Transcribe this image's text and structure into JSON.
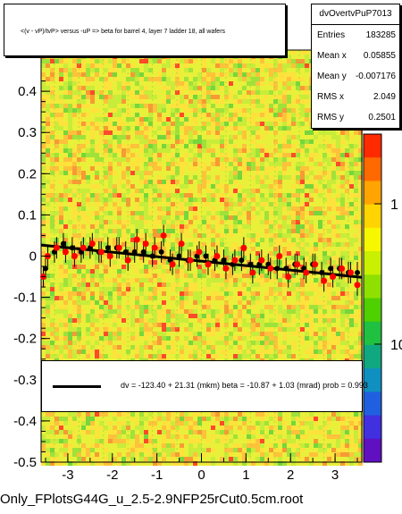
{
  "title": "<(v - vP)/tvP> versus -uP => beta for barrel 4, layer 7 ladder 18, all wafers",
  "footer": "Only_FPlotsG44G_u_2.5-2.9NFP25rCut0.5cm.root",
  "stats": {
    "name": "dvOvertvPuP7013",
    "rows": [
      {
        "label": "Entries",
        "value": "183285"
      },
      {
        "label": "Mean x",
        "value": "0.05855"
      },
      {
        "label": "Mean y",
        "value": "-0.007176"
      },
      {
        "label": "RMS x",
        "value": "2.049"
      },
      {
        "label": "RMS y",
        "value": "0.2501"
      }
    ]
  },
  "fit": {
    "text": "dv = -123.40 + 21.31 (mkm) beta = -10.87 + 1.03 (mrad) prob = 0.993"
  },
  "chart_data": {
    "type": "scatter",
    "title": "<(v - vP)/tvP> versus -uP => beta for barrel 4, layer 7 ladder 18, all wafers",
    "xlabel": "",
    "ylabel": "",
    "xlim": [
      -3.6,
      3.6
    ],
    "ylim": [
      -0.5,
      0.5
    ],
    "x_ticks": [
      -3,
      -2,
      -1,
      0,
      1,
      2,
      3
    ],
    "x_tick_labels": [
      "-3",
      "-2",
      "-1",
      "0",
      "1",
      "2",
      "3"
    ],
    "y_ticks": [
      -0.5,
      -0.4,
      -0.3,
      -0.2,
      -0.1,
      0,
      0.1,
      0.2,
      0.3,
      0.4
    ],
    "y_tick_labels": [
      "-0.5",
      "-0.4",
      "-0.3",
      "-0.2",
      "-0.1",
      "0",
      "0.1",
      "0.2",
      "0.3",
      "0.4"
    ],
    "colorbar": {
      "scale": "log",
      "tick_labels": [
        "1",
        "10"
      ]
    },
    "fit_line": {
      "slope": -0.01087,
      "intercept": -0.01234,
      "color": "#000000"
    },
    "series": [
      {
        "color": "#000000",
        "x": [
          -3.5,
          -3.3,
          -3.1,
          -2.9,
          -2.7,
          -2.5,
          -2.3,
          -2.1,
          -1.9,
          -1.7,
          -1.5,
          -1.3,
          -1.1,
          -0.9,
          -0.7,
          -0.5,
          -0.3,
          -0.1,
          0.1,
          0.3,
          0.5,
          0.7,
          0.9,
          1.1,
          1.3,
          1.5,
          1.7,
          1.9,
          2.1,
          2.3,
          2.5,
          2.7,
          2.9,
          3.1,
          3.3,
          3.5
        ],
        "y": [
          -0.03,
          0.01,
          0.03,
          0.02,
          0.01,
          0.02,
          0.01,
          0.02,
          0.02,
          0.01,
          0.01,
          0.01,
          0.0,
          0.01,
          -0.01,
          0.0,
          -0.01,
          0.0,
          0.0,
          -0.01,
          -0.01,
          -0.02,
          -0.01,
          -0.02,
          -0.02,
          -0.02,
          -0.03,
          -0.03,
          -0.02,
          -0.03,
          -0.02,
          -0.04,
          -0.03,
          -0.03,
          -0.04,
          -0.04
        ]
      },
      {
        "color": "#ff0000",
        "x": [
          -3.55,
          -3.45,
          -3.25,
          -3.05,
          -2.85,
          -2.65,
          -2.45,
          -2.25,
          -2.05,
          -1.85,
          -1.65,
          -1.45,
          -1.25,
          -1.05,
          -0.85,
          -0.65,
          -0.45,
          -0.25,
          -0.05,
          0.15,
          0.35,
          0.55,
          0.75,
          0.95,
          1.15,
          1.35,
          1.55,
          1.75,
          1.95,
          2.15,
          2.35,
          2.55,
          2.75,
          2.95,
          3.15,
          3.35,
          3.5
        ],
        "y": [
          -0.05,
          0.0,
          0.02,
          0.01,
          0.0,
          0.02,
          0.03,
          0.01,
          0.0,
          0.02,
          -0.01,
          0.04,
          0.03,
          0.02,
          0.05,
          -0.02,
          0.03,
          -0.01,
          0.01,
          -0.02,
          0.0,
          -0.03,
          -0.01,
          0.02,
          -0.04,
          -0.01,
          -0.03,
          0.0,
          -0.05,
          -0.02,
          -0.04,
          -0.02,
          -0.06,
          -0.05,
          -0.03,
          -0.04,
          -0.07
        ]
      }
    ]
  }
}
